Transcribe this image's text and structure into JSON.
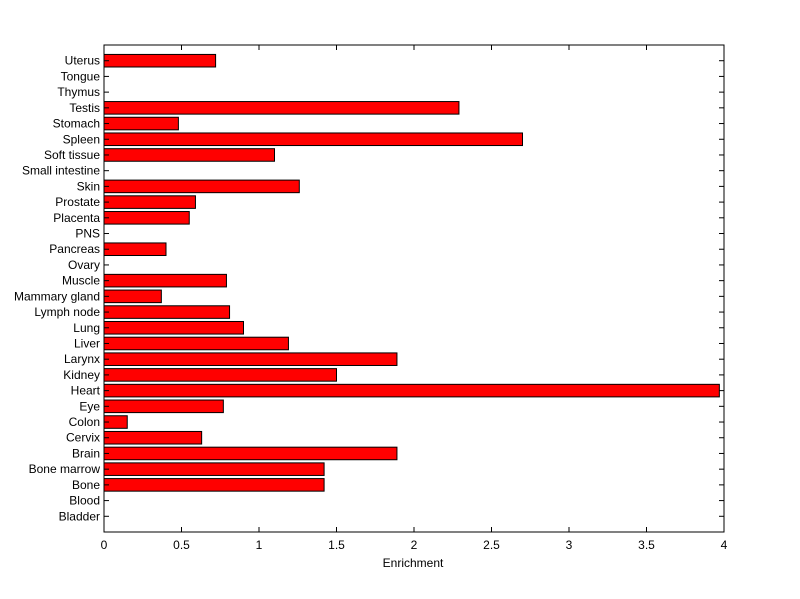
{
  "chart_data": {
    "type": "bar",
    "orientation": "horizontal",
    "xlabel": "Enrichment",
    "ylabel": "",
    "title": "",
    "xlim": [
      0,
      4
    ],
    "xticks": [
      "0",
      "0.5",
      "1",
      "1.5",
      "2",
      "2.5",
      "3",
      "3.5",
      "4"
    ],
    "bar_color": "#ff0000",
    "grid": false,
    "categories": [
      "Bladder",
      "Blood",
      "Bone",
      "Bone marrow",
      "Brain",
      "Cervix",
      "Colon",
      "Eye",
      "Heart",
      "Kidney",
      "Larynx",
      "Liver",
      "Lung",
      "Lymph node",
      "Mammary gland",
      "Muscle",
      "Ovary",
      "Pancreas",
      "PNS",
      "Placenta",
      "Prostate",
      "Skin",
      "Small intestine",
      "Soft tissue",
      "Spleen",
      "Stomach",
      "Testis",
      "Thymus",
      "Tongue",
      "Uterus"
    ],
    "values": [
      0,
      0,
      1.42,
      1.42,
      1.89,
      0.63,
      0.15,
      0.77,
      3.97,
      1.5,
      1.89,
      1.19,
      0.9,
      0.81,
      0.37,
      0.79,
      0,
      0.4,
      0,
      0.55,
      0.59,
      1.26,
      0,
      1.1,
      2.7,
      0.48,
      2.29,
      0,
      0,
      0.72
    ]
  }
}
